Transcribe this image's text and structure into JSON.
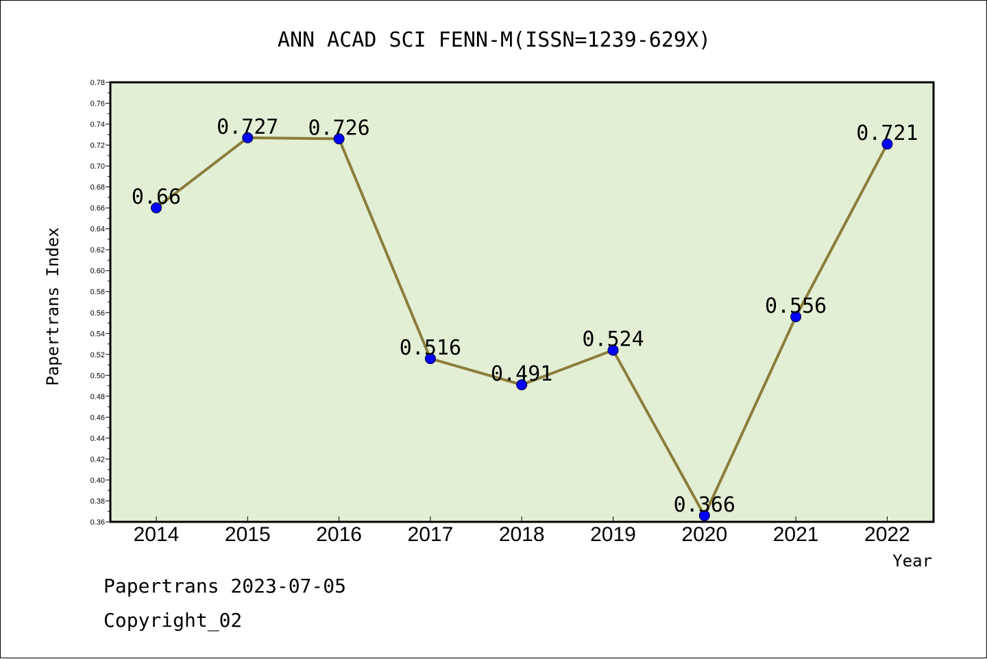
{
  "chart_data": {
    "type": "line",
    "title": "ANN ACAD SCI FENN-M(ISSN=1239-629X)",
    "xlabel": "Year",
    "ylabel": "Papertrans Index",
    "categories": [
      "2014",
      "2015",
      "2016",
      "2017",
      "2018",
      "2019",
      "2020",
      "2021",
      "2022"
    ],
    "series": [
      {
        "values": [
          0.66,
          0.727,
          0.726,
          0.516,
          0.491,
          0.524,
          0.366,
          0.556,
          0.721
        ],
        "labels": [
          "0.66",
          "0.727",
          "0.726",
          "0.516",
          "0.491",
          "0.524",
          "0.366",
          "0.556",
          "0.721"
        ]
      }
    ],
    "ylim": [
      0.36,
      0.78
    ],
    "ytick_labels": [
      "0.36",
      "0.38",
      "0.40",
      "0.42",
      "0.44",
      "0.46",
      "0.48",
      "0.50",
      "0.52",
      "0.54",
      "0.56",
      "0.58",
      "0.60",
      "0.62",
      "0.64",
      "0.66",
      "0.68",
      "0.70",
      "0.72",
      "0.74",
      "0.76",
      "0.78"
    ],
    "grid": false,
    "colors": {
      "plot_background": "#e2efd5",
      "line": "#8b7d3a",
      "marker": "#0000ff"
    }
  },
  "footer": {
    "line1": "Papertrans 2023-07-05",
    "line2": "Copyright_02"
  }
}
